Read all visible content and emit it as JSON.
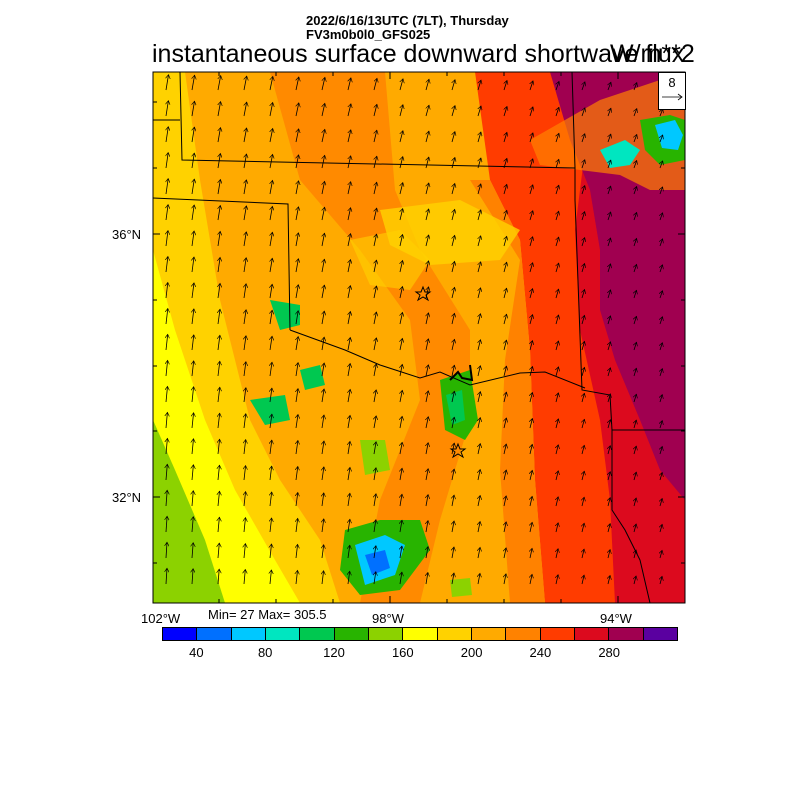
{
  "header": {
    "time_line": "2022/6/16/13UTC (7LT), Thursday",
    "model_line": "FV3m0b0l0_GFS025",
    "title": "instantaneous surface downward shortwave flux",
    "units": "W/m**2"
  },
  "map": {
    "lat_labels": [
      "36°N",
      "32°N"
    ],
    "lon_labels": [
      "102°W",
      "98°W",
      "94°W"
    ],
    "stats_text": "Min= 27 Max= 305.5",
    "min_value": 27,
    "max_value": 305.5,
    "markers": [
      "star-icon",
      "star-icon"
    ]
  },
  "vector_reference": {
    "speed_label": "8",
    "icon": "arrow-right-icon"
  },
  "colorbar": {
    "colors": [
      "#0000ff",
      "#0070ff",
      "#00c8ff",
      "#00e6c0",
      "#00c850",
      "#28b400",
      "#8cd200",
      "#ffff00",
      "#ffd200",
      "#ffaa00",
      "#ff8200",
      "#ff3c00",
      "#dc0a1e",
      "#a00050",
      "#5a00a0"
    ],
    "labels": [
      "40",
      "80",
      "120",
      "160",
      "200",
      "240",
      "280"
    ]
  }
}
